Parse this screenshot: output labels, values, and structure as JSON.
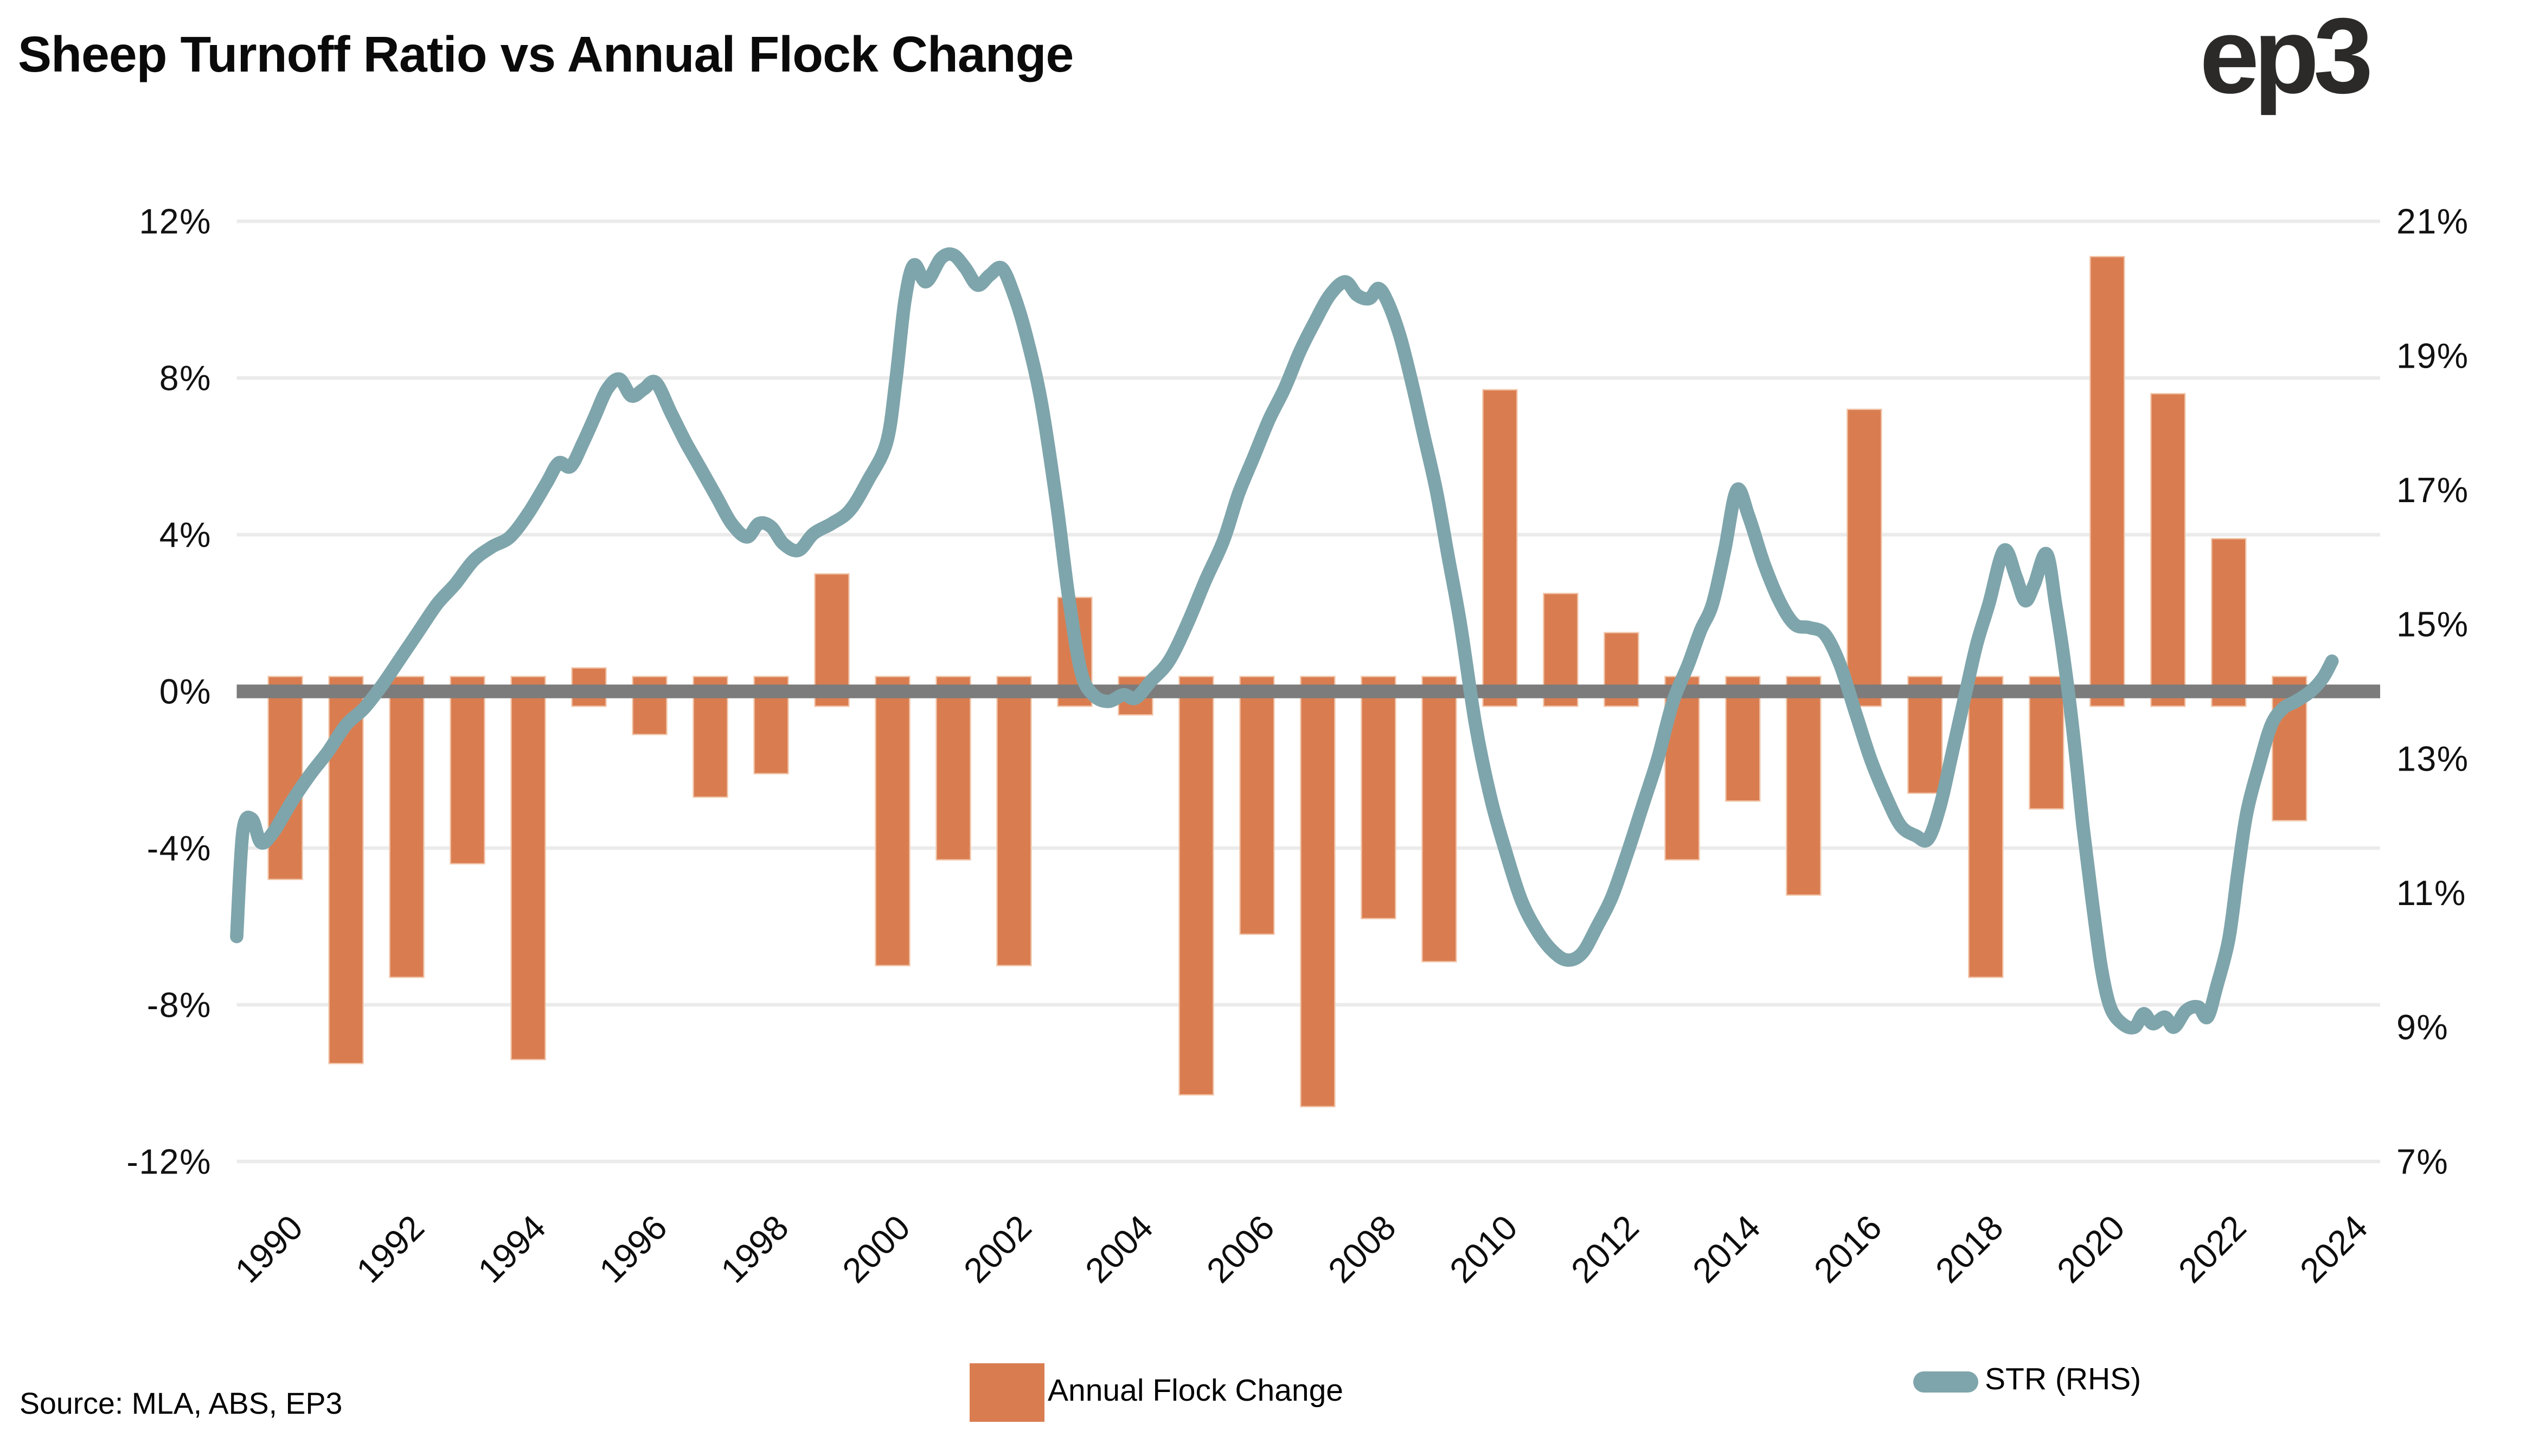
{
  "title": "Sheep Turnoff Ratio vs Annual Flock Change",
  "logo_text": "ep3",
  "source_text": "Source: MLA, ABS, EP3",
  "colors": {
    "bar_fill": "#D97D51",
    "bar_edge": "#F2C6AA",
    "line_stroke": "#7EA5AB",
    "zero_line": "#7C7C7C",
    "gridline": "#EBEBEB",
    "text": "#0A0A0A",
    "logo": "#2B2A28",
    "background": "#FFFFFF"
  },
  "chart_data": {
    "type": "combo-bar-line-dual-axis",
    "title": "Sheep Turnoff Ratio vs Annual Flock Change",
    "grid": true,
    "legend_position": "bottom",
    "left_axis": {
      "labels": [
        "12%",
        "8%",
        "4%",
        "0%",
        "-4%",
        "-8%",
        "-12%"
      ],
      "values": [
        12,
        8,
        4,
        0,
        -4,
        -8,
        -12
      ],
      "min": -12,
      "max": 12
    },
    "right_axis": {
      "labels": [
        "21%",
        "19%",
        "17%",
        "15%",
        "13%",
        "11%",
        "9%",
        "7%"
      ],
      "values": [
        21,
        19,
        17,
        15,
        13,
        11,
        9,
        7
      ],
      "min": 7,
      "max": 21
    },
    "x_axis": {
      "tick_labels": [
        "1990",
        "1992",
        "1994",
        "1996",
        "1998",
        "2000",
        "2002",
        "2004",
        "2006",
        "2008",
        "2010",
        "2012",
        "2014",
        "2016",
        "2018",
        "2020",
        "2022",
        "2024"
      ],
      "tick_years": [
        1990,
        1992,
        1994,
        1996,
        1998,
        2000,
        2002,
        2004,
        2006,
        2008,
        2010,
        2012,
        2014,
        2016,
        2018,
        2020,
        2022,
        2024
      ],
      "domain": [
        1989.2,
        2024.55
      ]
    },
    "series": [
      {
        "name": "Annual Flock Change",
        "type": "bar",
        "axis": "left",
        "color": "#D97D51",
        "years": [
          1990,
          1991,
          1992,
          1993,
          1994,
          1995,
          1996,
          1997,
          1998,
          1999,
          2000,
          2001,
          2002,
          2003,
          2004,
          2005,
          2006,
          2007,
          2008,
          2009,
          2010,
          2011,
          2012,
          2013,
          2014,
          2015,
          2016,
          2017,
          2018,
          2019,
          2020,
          2021,
          2022,
          2023
        ],
        "values": [
          -4.8,
          -9.5,
          -7.3,
          -4.4,
          -9.4,
          0.6,
          -1.1,
          -2.7,
          -2.1,
          3.0,
          -7.0,
          -4.3,
          -7.0,
          2.4,
          -0.6,
          -10.3,
          -6.2,
          -10.6,
          -5.8,
          -6.9,
          7.7,
          2.5,
          1.5,
          -4.3,
          -2.8,
          -5.2,
          7.2,
          -2.6,
          -7.3,
          -3.0,
          11.1,
          7.6,
          3.9,
          -3.3
        ]
      },
      {
        "name": "STR (RHS)",
        "type": "line",
        "axis": "right",
        "color": "#7EA5AB",
        "points": [
          [
            1989.2,
            10.35
          ],
          [
            1989.3,
            11.9
          ],
          [
            1989.45,
            12.1
          ],
          [
            1989.6,
            11.75
          ],
          [
            1989.8,
            11.9
          ],
          [
            1990.1,
            12.35
          ],
          [
            1990.4,
            12.75
          ],
          [
            1990.7,
            13.1
          ],
          [
            1991.0,
            13.5
          ],
          [
            1991.3,
            13.75
          ],
          [
            1991.6,
            14.1
          ],
          [
            1991.9,
            14.5
          ],
          [
            1992.2,
            14.9
          ],
          [
            1992.5,
            15.3
          ],
          [
            1992.8,
            15.6
          ],
          [
            1993.1,
            15.95
          ],
          [
            1993.4,
            16.15
          ],
          [
            1993.7,
            16.3
          ],
          [
            1994.0,
            16.65
          ],
          [
            1994.3,
            17.1
          ],
          [
            1994.5,
            17.4
          ],
          [
            1994.7,
            17.35
          ],
          [
            1994.9,
            17.7
          ],
          [
            1995.1,
            18.1
          ],
          [
            1995.3,
            18.5
          ],
          [
            1995.5,
            18.65
          ],
          [
            1995.7,
            18.4
          ],
          [
            1995.9,
            18.5
          ],
          [
            1996.1,
            18.6
          ],
          [
            1996.35,
            18.15
          ],
          [
            1996.6,
            17.7
          ],
          [
            1996.85,
            17.3
          ],
          [
            1997.1,
            16.9
          ],
          [
            1997.35,
            16.5
          ],
          [
            1997.6,
            16.3
          ],
          [
            1997.8,
            16.5
          ],
          [
            1998.0,
            16.45
          ],
          [
            1998.2,
            16.2
          ],
          [
            1998.45,
            16.1
          ],
          [
            1998.7,
            16.35
          ],
          [
            1999.0,
            16.5
          ],
          [
            1999.3,
            16.7
          ],
          [
            1999.6,
            17.15
          ],
          [
            1999.9,
            17.7
          ],
          [
            2000.05,
            18.6
          ],
          [
            2000.2,
            19.8
          ],
          [
            2000.35,
            20.35
          ],
          [
            2000.55,
            20.1
          ],
          [
            2000.8,
            20.45
          ],
          [
            2001.0,
            20.5
          ],
          [
            2001.2,
            20.3
          ],
          [
            2001.4,
            20.05
          ],
          [
            2001.6,
            20.2
          ],
          [
            2001.8,
            20.3
          ],
          [
            2002.0,
            19.9
          ],
          [
            2002.2,
            19.3
          ],
          [
            2002.45,
            18.3
          ],
          [
            2002.7,
            16.8
          ],
          [
            2002.9,
            15.4
          ],
          [
            2003.1,
            14.3
          ],
          [
            2003.3,
            13.95
          ],
          [
            2003.55,
            13.85
          ],
          [
            2003.8,
            13.95
          ],
          [
            2004.0,
            13.9
          ],
          [
            2004.25,
            14.15
          ],
          [
            2004.55,
            14.45
          ],
          [
            2004.85,
            15.0
          ],
          [
            2005.15,
            15.65
          ],
          [
            2005.45,
            16.25
          ],
          [
            2005.7,
            16.95
          ],
          [
            2005.95,
            17.5
          ],
          [
            2006.2,
            18.05
          ],
          [
            2006.45,
            18.5
          ],
          [
            2006.7,
            19.05
          ],
          [
            2006.95,
            19.5
          ],
          [
            2007.2,
            19.9
          ],
          [
            2007.45,
            20.1
          ],
          [
            2007.65,
            19.9
          ],
          [
            2007.85,
            19.85
          ],
          [
            2008.0,
            20.0
          ],
          [
            2008.15,
            19.8
          ],
          [
            2008.35,
            19.3
          ],
          [
            2008.55,
            18.6
          ],
          [
            2008.75,
            17.8
          ],
          [
            2008.95,
            17.0
          ],
          [
            2009.15,
            16.0
          ],
          [
            2009.35,
            15.0
          ],
          [
            2009.6,
            13.5
          ],
          [
            2009.85,
            12.4
          ],
          [
            2010.1,
            11.6
          ],
          [
            2010.35,
            10.9
          ],
          [
            2010.6,
            10.45
          ],
          [
            2010.85,
            10.15
          ],
          [
            2011.1,
            10.0
          ],
          [
            2011.35,
            10.1
          ],
          [
            2011.6,
            10.5
          ],
          [
            2011.85,
            10.95
          ],
          [
            2012.1,
            11.6
          ],
          [
            2012.35,
            12.3
          ],
          [
            2012.6,
            13.0
          ],
          [
            2012.85,
            13.85
          ],
          [
            2013.1,
            14.4
          ],
          [
            2013.3,
            14.9
          ],
          [
            2013.5,
            15.3
          ],
          [
            2013.7,
            16.1
          ],
          [
            2013.9,
            17.0
          ],
          [
            2014.1,
            16.6
          ],
          [
            2014.35,
            15.9
          ],
          [
            2014.6,
            15.35
          ],
          [
            2014.85,
            15.0
          ],
          [
            2015.1,
            14.95
          ],
          [
            2015.35,
            14.85
          ],
          [
            2015.6,
            14.4
          ],
          [
            2015.85,
            13.7
          ],
          [
            2016.1,
            13.0
          ],
          [
            2016.35,
            12.45
          ],
          [
            2016.6,
            12.0
          ],
          [
            2016.85,
            11.85
          ],
          [
            2017.05,
            11.8
          ],
          [
            2017.25,
            12.3
          ],
          [
            2017.45,
            13.1
          ],
          [
            2017.65,
            13.9
          ],
          [
            2017.85,
            14.7
          ],
          [
            2018.05,
            15.3
          ],
          [
            2018.3,
            16.1
          ],
          [
            2018.5,
            15.7
          ],
          [
            2018.65,
            15.35
          ],
          [
            2018.8,
            15.6
          ],
          [
            2019.0,
            16.05
          ],
          [
            2019.15,
            15.3
          ],
          [
            2019.3,
            14.4
          ],
          [
            2019.45,
            13.3
          ],
          [
            2019.6,
            12.0
          ],
          [
            2019.75,
            10.9
          ],
          [
            2019.9,
            9.9
          ],
          [
            2020.05,
            9.3
          ],
          [
            2020.25,
            9.05
          ],
          [
            2020.45,
            9.0
          ],
          [
            2020.6,
            9.2
          ],
          [
            2020.75,
            9.05
          ],
          [
            2020.95,
            9.15
          ],
          [
            2021.1,
            9.0
          ],
          [
            2021.3,
            9.25
          ],
          [
            2021.5,
            9.3
          ],
          [
            2021.65,
            9.15
          ],
          [
            2021.8,
            9.6
          ],
          [
            2022.0,
            10.3
          ],
          [
            2022.15,
            11.3
          ],
          [
            2022.3,
            12.2
          ],
          [
            2022.5,
            12.9
          ],
          [
            2022.7,
            13.5
          ],
          [
            2022.9,
            13.75
          ],
          [
            2023.1,
            13.85
          ],
          [
            2023.35,
            14.0
          ],
          [
            2023.55,
            14.2
          ],
          [
            2023.7,
            14.45
          ]
        ]
      }
    ],
    "legend": [
      "Annual Flock Change",
      "STR (RHS)"
    ]
  }
}
